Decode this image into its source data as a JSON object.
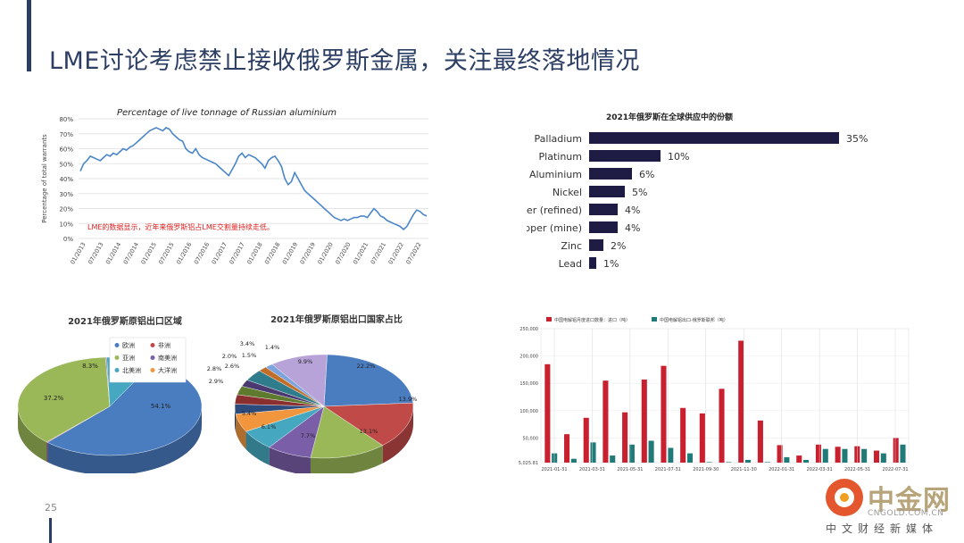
{
  "slide": {
    "title": "LME讨论考虑禁止接收俄罗斯金属，关注最终落地情况",
    "page_number": "25"
  },
  "logo": {
    "name": "中金网",
    "url": "CNGOLD.COM.CN",
    "tagline": "中文财经新媒体"
  },
  "chart_data": [
    {
      "id": "line",
      "type": "line",
      "title": "Percentage of live tonnage of Russian aluminium",
      "ylabel": "Percentage of total warrants",
      "xlabel": "",
      "ylim": [
        0,
        80
      ],
      "yticks": [
        "0%",
        "10%",
        "20%",
        "30%",
        "40%",
        "50%",
        "60%",
        "70%",
        "80%"
      ],
      "x_tick_labels": [
        "01/2013",
        "07/2013",
        "01/2014",
        "07/2014",
        "01/2015",
        "07/2015",
        "01/2016",
        "07/2016",
        "01/2017",
        "07/2017",
        "01/2018",
        "07/2018",
        "01/2019",
        "07/2019",
        "01/2020",
        "07/2020",
        "01/2021",
        "07/2021",
        "01/2022",
        "07/2022"
      ],
      "annotation": "LME的数据显示，近年来俄罗斯铝占LME交割量持续走低。",
      "color": "#4a86c8",
      "series": [
        {
          "values": [
            45,
            50,
            52,
            55,
            54,
            53,
            52,
            54,
            56,
            55,
            57,
            56,
            58,
            60,
            59,
            61,
            62,
            64,
            66,
            68,
            70,
            72,
            73,
            74,
            73,
            72,
            74,
            73,
            70,
            68,
            66,
            65,
            60,
            58,
            57,
            60,
            56,
            54,
            53,
            52,
            51,
            50,
            48,
            46,
            44,
            42,
            46,
            50,
            55,
            57,
            54,
            56,
            55,
            54,
            52,
            50,
            47,
            52,
            54,
            55,
            52,
            48,
            40,
            36,
            38,
            44,
            40,
            36,
            32,
            30,
            28,
            26,
            24,
            22,
            20,
            18,
            16,
            14,
            13,
            12,
            13,
            12,
            13,
            14,
            14,
            15,
            15,
            14,
            17,
            20,
            18,
            15,
            14,
            12,
            11,
            10,
            9,
            8,
            6,
            8,
            12,
            16,
            19,
            18,
            16,
            15
          ]
        }
      ]
    },
    {
      "id": "supply-share",
      "type": "bar",
      "orientation": "horizontal",
      "title": "2021年俄罗斯在全球供应中的份额",
      "categories": [
        "Palladium",
        "Platinum",
        "Aluminium",
        "Nickel",
        "Copper (refined)",
        "Copper (mine)",
        "Zinc",
        "Lead"
      ],
      "values": [
        35,
        10,
        6,
        5,
        4,
        4,
        2,
        1
      ],
      "value_labels": [
        "35%",
        "10%",
        "6%",
        "5%",
        "4%",
        "4%",
        "2%",
        "1%"
      ],
      "xlim": [
        0,
        35
      ],
      "color": "#1e1c45"
    },
    {
      "id": "region-pie",
      "type": "pie",
      "title": "2021年俄罗斯原铝出口区域",
      "legend": [
        "欧洲",
        "非洲",
        "亚洲",
        "南美洲",
        "北美洲",
        "大洋洲"
      ],
      "legend_colors": [
        "#4a7cc0",
        "#c04a48",
        "#9ab858",
        "#7b5ea8",
        "#46a8c0",
        "#f2963e"
      ],
      "values": [
        54.1,
        0.2,
        37.2,
        0.2,
        8.3,
        0.0
      ],
      "labels": [
        "54.1%",
        "",
        "37.2%",
        "",
        "8.3%",
        ""
      ]
    },
    {
      "id": "country-pie",
      "type": "pie",
      "title": "2021年俄罗斯原铝出口国家占比",
      "values": [
        22.2,
        13.9,
        13.1,
        7.7,
        6.1,
        5.4,
        2.9,
        2.8,
        2.6,
        2.0,
        3.4,
        1.5,
        1.4,
        9.9
      ],
      "labels": [
        "22.2%",
        "13.9%",
        "13.1%",
        "7.7%",
        "6.1%",
        "5.4%",
        "2.9%",
        "2.8%",
        "2.6%",
        "2.0%",
        "3.4%",
        "1.5%",
        "1.4%",
        "9.9%"
      ],
      "colors": [
        "#4a7cc0",
        "#c04a48",
        "#9ab858",
        "#7b5ea8",
        "#46a8c0",
        "#f2963e",
        "#2c4a7c",
        "#8a2f2e",
        "#5e7a2e",
        "#4a3a70",
        "#2e7c8c",
        "#c06e28",
        "#7fa3dc",
        "#b7a3d8"
      ]
    },
    {
      "id": "monthly",
      "type": "bar",
      "legend": [
        "中国电解铝月度进口数量：进口（吨）",
        "中国电解铝出口-俄罗斯联邦（吨）"
      ],
      "series_colors": [
        "#c8202f",
        "#1f7a78"
      ],
      "ylim": [
        5025.81,
        250000
      ],
      "yticks": [
        "5,025.81",
        "50,000",
        "100,000",
        "150,000",
        "200,000",
        "250,000"
      ],
      "ytick_values": [
        5025.81,
        50000,
        100000,
        150000,
        200000,
        250000
      ],
      "x_tick_labels": [
        "2021-01-31",
        "2021-03-31",
        "2021-05-31",
        "2021-07-31",
        "2021-09-30",
        "2021-11-30",
        "2022-01-31",
        "2022-03-31",
        "2022-05-31",
        "2022-07-31"
      ],
      "series": [
        {
          "values": [
            185000,
            57000,
            87000,
            155000,
            97000,
            157000,
            182000,
            105000,
            95000,
            140000,
            228000,
            82000,
            37000,
            18000,
            38000,
            34000,
            35000,
            27000,
            50000
          ]
        },
        {
          "values": [
            22000,
            12000,
            42000,
            18000,
            38000,
            45000,
            32000,
            22000,
            6000,
            6000,
            10000,
            6000,
            15000,
            10000,
            30000,
            30000,
            30000,
            22000,
            38000
          ]
        }
      ]
    }
  ]
}
